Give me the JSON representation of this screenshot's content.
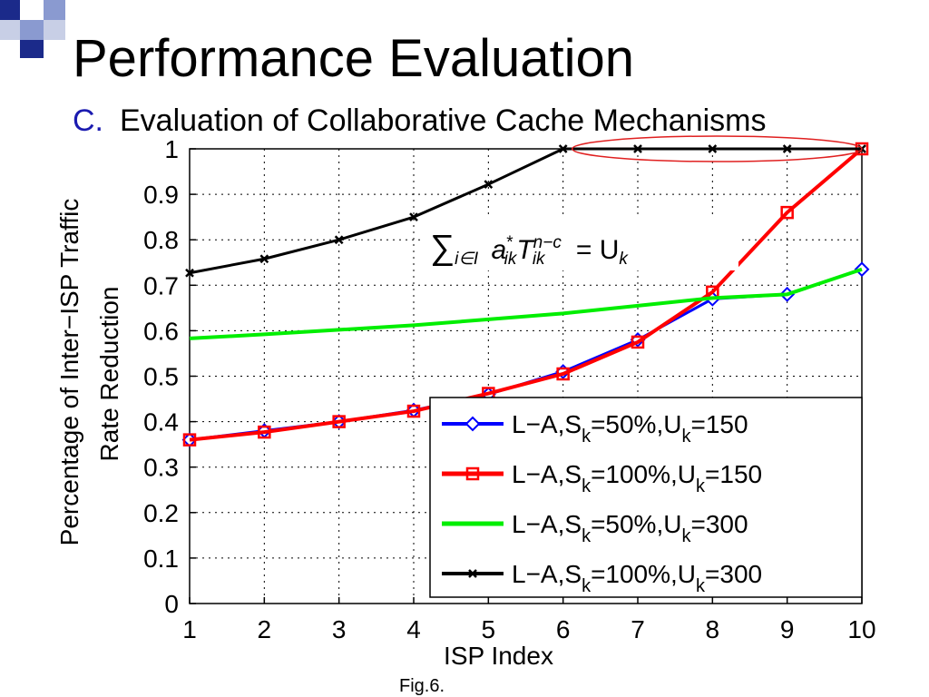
{
  "slide": {
    "title": "Performance Evaluation",
    "subtitle_marker": "C.",
    "subtitle": "Evaluation of Collaborative Cache Mechanisms",
    "caption": "Fig.6.",
    "accent_colors": [
      "#1b2a8a",
      "#8a9ad0",
      "#c8cfe6"
    ]
  },
  "chart_data": {
    "type": "line",
    "title": "",
    "xlabel": "ISP Index",
    "ylabel_lines": [
      "Percentage of Inter−ISP Traffic",
      "Rate Reduction"
    ],
    "xlim": [
      1,
      10
    ],
    "ylim": [
      0,
      1
    ],
    "xticks": [
      "1",
      "2",
      "3",
      "4",
      "5",
      "6",
      "7",
      "8",
      "9",
      "10"
    ],
    "yticks": [
      "0",
      "0.1",
      "0.2",
      "0.3",
      "0.4",
      "0.5",
      "0.6",
      "0.7",
      "0.8",
      "0.9",
      "1"
    ],
    "grid": true,
    "legend_position": "bottom-right",
    "x": [
      1,
      2,
      3,
      4,
      5,
      6,
      7,
      8,
      9,
      10
    ],
    "series": [
      {
        "name": "L−A,S_k=50%,U_k=150",
        "legend": {
          "prefix": "L−A,S",
          "sub1": "k",
          "mid": "=50%,U",
          "sub2": "k",
          "suffix": "=150"
        },
        "color": "#0000ff",
        "marker": "diamond",
        "linewidth": 3,
        "values": [
          0.36,
          0.38,
          0.4,
          0.425,
          0.46,
          0.51,
          0.58,
          0.67,
          0.68,
          0.735
        ]
      },
      {
        "name": "L−A,S_k=100%,U_k=150",
        "legend": {
          "prefix": "L−A,S",
          "sub1": "k",
          "mid": "=100%,U",
          "sub2": "k",
          "suffix": "=150"
        },
        "color": "#ff0000",
        "marker": "square",
        "linewidth": 4,
        "values": [
          0.36,
          0.377,
          0.4,
          0.423,
          0.462,
          0.505,
          0.575,
          0.685,
          0.86,
          1.0
        ]
      },
      {
        "name": "L−A,S_k=50%,U_k=300",
        "legend": {
          "prefix": "L−A,S",
          "sub1": "k",
          "mid": "=50%,U",
          "sub2": "k",
          "suffix": "=300"
        },
        "color": "#00ee00",
        "marker": "none",
        "linewidth": 4,
        "values": [
          0.583,
          0.592,
          0.602,
          0.612,
          0.625,
          0.638,
          0.655,
          0.672,
          0.68,
          0.735
        ]
      },
      {
        "name": "L−A,S_k=100%,U_k=300",
        "legend": {
          "prefix": "L−A,S",
          "sub1": "k",
          "mid": "=100%,U",
          "sub2": "k",
          "suffix": "=300"
        },
        "color": "#000000",
        "marker": "x",
        "linewidth": 3,
        "values": [
          0.727,
          0.758,
          0.8,
          0.85,
          0.922,
          1.0,
          1.0,
          1.0,
          1.0,
          1.0
        ]
      }
    ],
    "annotations": {
      "highlight_ellipse": {
        "x_range": [
          6,
          10
        ],
        "y": 1.0,
        "color": "#e02020"
      },
      "formula": "∑_{i∈I} a*_{ik} T^{n−c}_{ik} = U_k"
    }
  }
}
